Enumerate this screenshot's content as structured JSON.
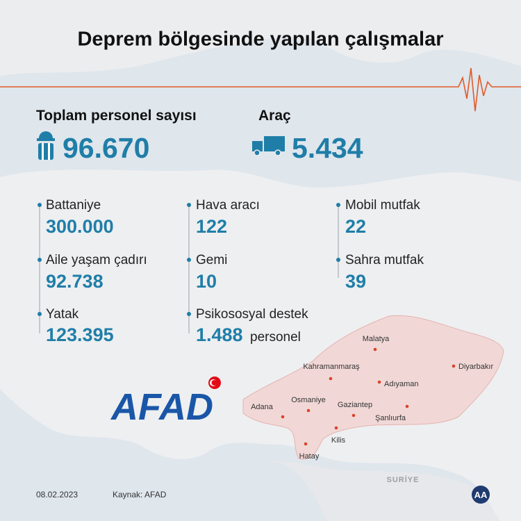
{
  "title": "Deprem bölgesinde yapılan çalışmalar",
  "headline": [
    {
      "label": "Toplam personel sayısı",
      "value": "96.670"
    },
    {
      "label": "Araç",
      "value": "5.434"
    }
  ],
  "items": [
    {
      "label": "Battaniye",
      "value": "300.000"
    },
    {
      "label": "Aile yaşam çadırı",
      "value": "92.738"
    },
    {
      "label": "Yatak",
      "value": "123.395"
    },
    {
      "label": "Hava aracı",
      "value": "122"
    },
    {
      "label": "Gemi",
      "value": "10"
    },
    {
      "label": "Psikososyal destek",
      "value": "1.488",
      "unit": "personel"
    },
    {
      "label": "Mobil mutfak",
      "value": "22"
    },
    {
      "label": "Sahra mutfak",
      "value": "39"
    }
  ],
  "logo": "AFAD",
  "map": {
    "country": "SURİYE",
    "cities": [
      "Malatya",
      "Kahramanmaraş",
      "Diyarbakır",
      "Adıyaman",
      "Adana",
      "Osmaniye",
      "Gaziantep",
      "Şanlıurfa",
      "Kilis",
      "Hatay"
    ]
  },
  "footer": {
    "date": "08.02.2023",
    "source": "Kaynak: AFAD",
    "agency": "AA"
  }
}
